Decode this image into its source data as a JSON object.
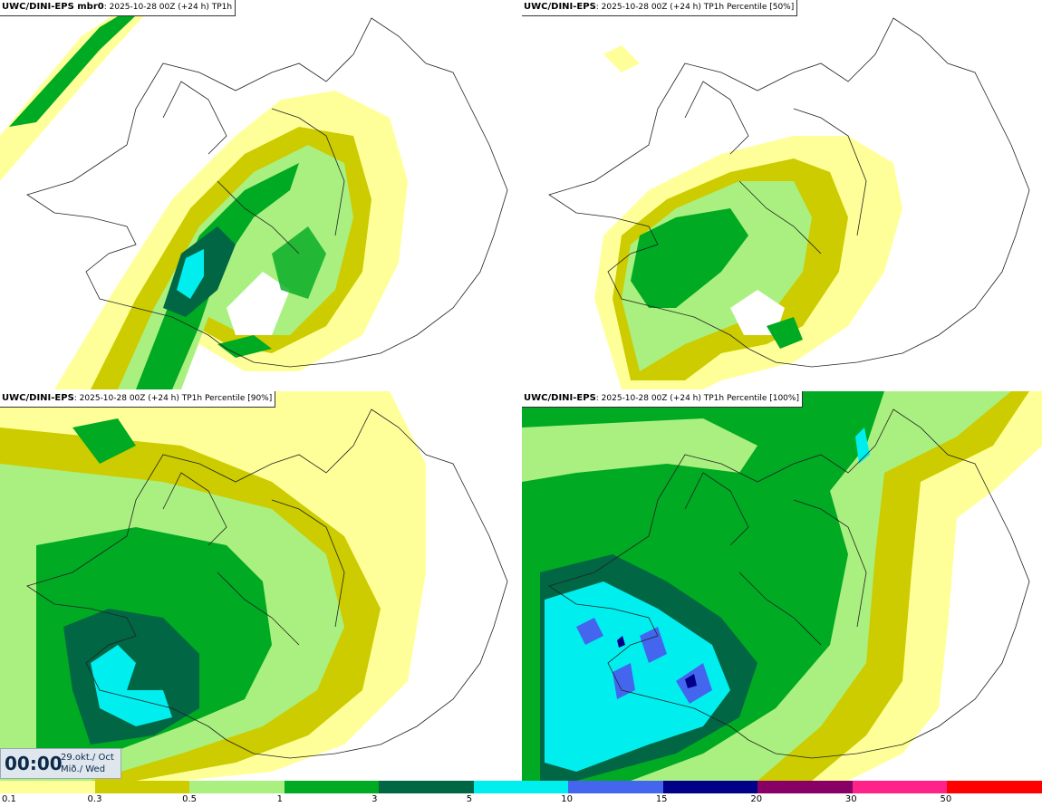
{
  "panels": [
    {
      "model": "UWC/DINI-EPS mbr0",
      "rest": ": 2025-10-28 00Z (+24 h) TP1h"
    },
    {
      "model": "UWC/DINI-EPS",
      "rest": ": 2025-10-28 00Z (+24 h) TP1h Percentile [50%]"
    },
    {
      "model": "UWC/DINI-EPS",
      "rest": ": 2025-10-28 00Z (+24 h) TP1h Percentile [90%]"
    },
    {
      "model": "UWC/DINI-EPS",
      "rest": ": 2025-10-28 00Z (+24 h) TP1h Percentile [100%]"
    }
  ],
  "timebox": {
    "time": "00:00",
    "date_line1": "29.okt./ Oct",
    "date_line2": "Mið./ Wed"
  },
  "legend": {
    "labels": [
      "0.1",
      "0.3",
      "0.5",
      "1",
      "3",
      "5",
      "10",
      "15",
      "20",
      "30",
      "50"
    ],
    "colors": [
      "#ffff99",
      "#cccc00",
      "#aaf080",
      "#00aa22",
      "#006644",
      "#00eeee",
      "#4466ee",
      "#000088",
      "#880066",
      "#ff2288",
      "#ff0000"
    ]
  },
  "palette": {
    "p01": "#ffff99",
    "p03": "#cccc00",
    "p05": "#aaf080",
    "p1": "#00aa22",
    "p3": "#006644",
    "p5": "#00eeee",
    "p10": "#4466ee",
    "p15": "#000088"
  }
}
